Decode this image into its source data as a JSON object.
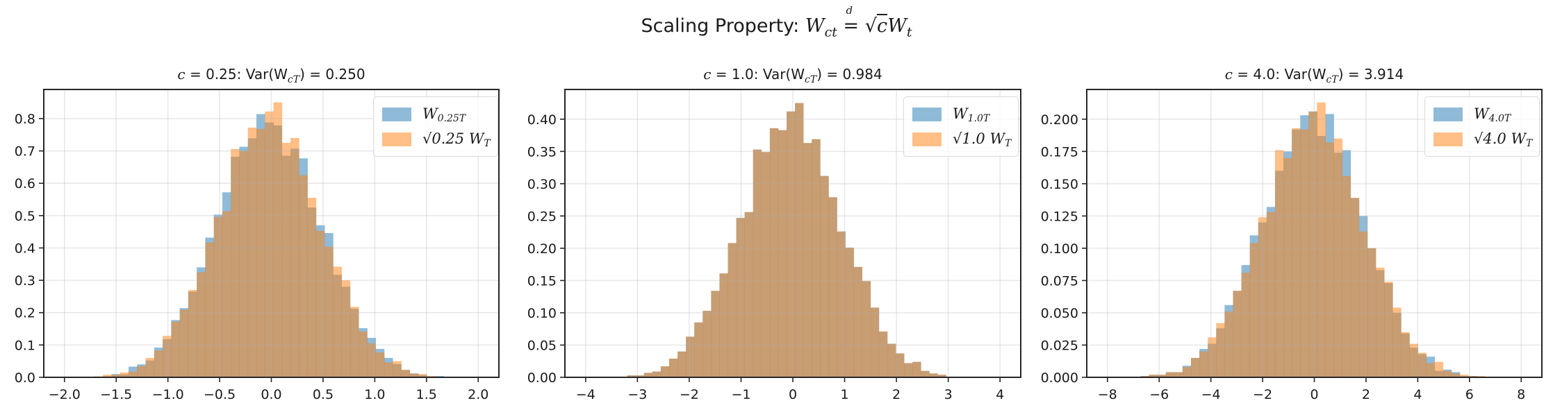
{
  "figure": {
    "suptitle_prefix": "Scaling Property: ",
    "suptitle_math": "W_ct =d √c W_t"
  },
  "colors": {
    "series_w": "#1f77b4",
    "series_scaled": "#ff7f0e",
    "alpha": 0.5,
    "grid": "#e6e6e6",
    "axis": "#262626"
  },
  "chart_data": [
    {
      "type": "bar",
      "title": "c = 0.25: Var(W_cT) = 0.250",
      "title_parts": {
        "c_label": "c = 0.25",
        "var_label": ": Var(W",
        "var_sub": "cT",
        "var_value": ") = 0.250"
      },
      "xlabel": "",
      "ylabel": "",
      "xlim": [
        -2.2,
        2.2
      ],
      "ylim": [
        0,
        0.89
      ],
      "xticks": [
        -2.0,
        -1.5,
        -1.0,
        -0.5,
        0.0,
        0.5,
        1.0,
        1.5,
        2.0
      ],
      "xtick_labels": [
        "−2.0",
        "−1.5",
        "−1.0",
        "−0.5",
        "0.0",
        "0.5",
        "1.0",
        "1.5",
        "2.0"
      ],
      "yticks": [
        0.0,
        0.1,
        0.2,
        0.3,
        0.4,
        0.5,
        0.6,
        0.7,
        0.8
      ],
      "ytick_labels": [
        "0.0",
        "0.1",
        "0.2",
        "0.3",
        "0.4",
        "0.5",
        "0.6",
        "0.7",
        "0.8"
      ],
      "grid": true,
      "legend_position": "upper right",
      "bin_start": -1.71,
      "bin_width": 0.0824,
      "series": [
        {
          "name": "W_{0.25T}",
          "legend_main": "W",
          "legend_sub": "0.25T",
          "values": [
            0.0,
            0.003,
            0.01,
            0.009,
            0.033,
            0.04,
            0.052,
            0.092,
            0.118,
            0.177,
            0.214,
            0.265,
            0.34,
            0.432,
            0.503,
            0.572,
            0.682,
            0.713,
            0.739,
            0.814,
            0.788,
            0.779,
            0.685,
            0.707,
            0.677,
            0.525,
            0.47,
            0.446,
            0.317,
            0.28,
            0.212,
            0.152,
            0.122,
            0.088,
            0.06,
            0.041,
            0.023,
            0.012,
            0.007,
            0.003,
            0.004
          ]
        },
        {
          "name": "√0.25 W_T",
          "legend_main": "√0.25 W",
          "legend_sub": "T",
          "values": [
            0.003,
            0.008,
            0.008,
            0.015,
            0.018,
            0.035,
            0.06,
            0.083,
            0.128,
            0.172,
            0.209,
            0.27,
            0.325,
            0.417,
            0.496,
            0.514,
            0.706,
            0.7,
            0.772,
            0.768,
            0.822,
            0.85,
            0.725,
            0.74,
            0.625,
            0.555,
            0.453,
            0.404,
            0.342,
            0.3,
            0.218,
            0.142,
            0.105,
            0.077,
            0.046,
            0.05,
            0.023,
            0.012,
            0.01,
            0.004,
            0.002
          ]
        }
      ]
    },
    {
      "type": "bar",
      "title": "c = 1.0: Var(W_cT) = 0.984",
      "title_parts": {
        "c_label": "c = 1.0",
        "var_label": ": Var(W",
        "var_sub": "cT",
        "var_value": ") = 0.984"
      },
      "xlabel": "",
      "ylabel": "",
      "xlim": [
        -4.4,
        4.4
      ],
      "ylim": [
        0,
        0.446
      ],
      "xticks": [
        -4,
        -3,
        -2,
        -1,
        0,
        1,
        2,
        3,
        4
      ],
      "xtick_labels": [
        "−4",
        "−3",
        "−2",
        "−1",
        "0",
        "1",
        "2",
        "3",
        "4"
      ],
      "yticks": [
        0.0,
        0.05,
        0.1,
        0.15,
        0.2,
        0.25,
        0.3,
        0.35,
        0.4
      ],
      "ytick_labels": [
        "0.00",
        "0.05",
        "0.10",
        "0.15",
        "0.20",
        "0.25",
        "0.30",
        "0.35",
        "0.40"
      ],
      "grid": true,
      "legend_position": "upper right",
      "bin_start": -3.36,
      "bin_width": 0.162,
      "series": [
        {
          "name": "W_{1.0T}",
          "legend_main": "W",
          "legend_sub": "1.0T",
          "values": [
            0.001,
            0.003,
            0.003,
            0.007,
            0.009,
            0.017,
            0.029,
            0.04,
            0.063,
            0.085,
            0.103,
            0.134,
            0.161,
            0.208,
            0.247,
            0.256,
            0.353,
            0.349,
            0.386,
            0.383,
            0.412,
            0.425,
            0.363,
            0.369,
            0.312,
            0.279,
            0.226,
            0.201,
            0.171,
            0.149,
            0.108,
            0.071,
            0.052,
            0.037,
            0.022,
            0.024,
            0.01,
            0.006,
            0.004,
            0.001,
            0.001
          ]
        },
        {
          "name": "√1.0 W_T",
          "legend_main": "√1.0 W",
          "legend_sub": "T",
          "values": [
            0.001,
            0.003,
            0.003,
            0.007,
            0.009,
            0.017,
            0.029,
            0.04,
            0.063,
            0.085,
            0.103,
            0.134,
            0.161,
            0.208,
            0.247,
            0.256,
            0.353,
            0.349,
            0.386,
            0.383,
            0.412,
            0.425,
            0.363,
            0.369,
            0.312,
            0.279,
            0.226,
            0.201,
            0.171,
            0.149,
            0.108,
            0.071,
            0.052,
            0.037,
            0.022,
            0.024,
            0.01,
            0.006,
            0.004,
            0.001,
            0.001
          ]
        }
      ]
    },
    {
      "type": "bar",
      "title": "c = 4.0: Var(W_cT) = 3.914",
      "title_parts": {
        "c_label": "c = 4.0",
        "var_label": ": Var(W",
        "var_sub": "cT",
        "var_value": ") = 3.914"
      },
      "xlabel": "",
      "ylabel": "",
      "xlim": [
        -8.8,
        8.8
      ],
      "ylim": [
        0,
        0.223
      ],
      "xticks": [
        -8,
        -6,
        -4,
        -2,
        0,
        2,
        4,
        6,
        8
      ],
      "xtick_labels": [
        "−8",
        "−6",
        "−4",
        "−2",
        "0",
        "2",
        "4",
        "6",
        "8"
      ],
      "yticks": [
        0.0,
        0.025,
        0.05,
        0.075,
        0.1,
        0.125,
        0.15,
        0.175,
        0.2
      ],
      "ytick_labels": [
        "0.000",
        "0.025",
        "0.050",
        "0.075",
        "0.100",
        "0.125",
        "0.150",
        "0.175",
        "0.200"
      ],
      "grid": true,
      "legend_position": "upper right",
      "bin_start": -6.72,
      "bin_width": 0.325,
      "series": [
        {
          "name": "W_{4.0T}",
          "legend_main": "W",
          "legend_sub": "4.0T",
          "values": [
            0.001,
            0.002,
            0.002,
            0.004,
            0.004,
            0.009,
            0.015,
            0.022,
            0.026,
            0.038,
            0.056,
            0.067,
            0.087,
            0.11,
            0.12,
            0.132,
            0.16,
            0.175,
            0.192,
            0.203,
            0.206,
            0.187,
            0.204,
            0.174,
            0.176,
            0.139,
            0.125,
            0.1,
            0.083,
            0.073,
            0.05,
            0.034,
            0.023,
            0.018,
            0.016,
            0.005,
            0.006,
            0.004,
            0.001,
            0.001,
            0.0
          ]
        },
        {
          "name": "√4.0 W_T",
          "legend_main": "√4.0 W",
          "legend_sub": "T",
          "values": [
            0.001,
            0.002,
            0.002,
            0.004,
            0.004,
            0.008,
            0.015,
            0.02,
            0.031,
            0.042,
            0.051,
            0.067,
            0.081,
            0.104,
            0.124,
            0.128,
            0.176,
            0.17,
            0.193,
            0.192,
            0.206,
            0.213,
            0.182,
            0.185,
            0.156,
            0.139,
            0.113,
            0.1,
            0.085,
            0.074,
            0.054,
            0.035,
            0.026,
            0.019,
            0.011,
            0.012,
            0.005,
            0.003,
            0.002,
            0.001,
            0.001
          ]
        }
      ]
    }
  ]
}
